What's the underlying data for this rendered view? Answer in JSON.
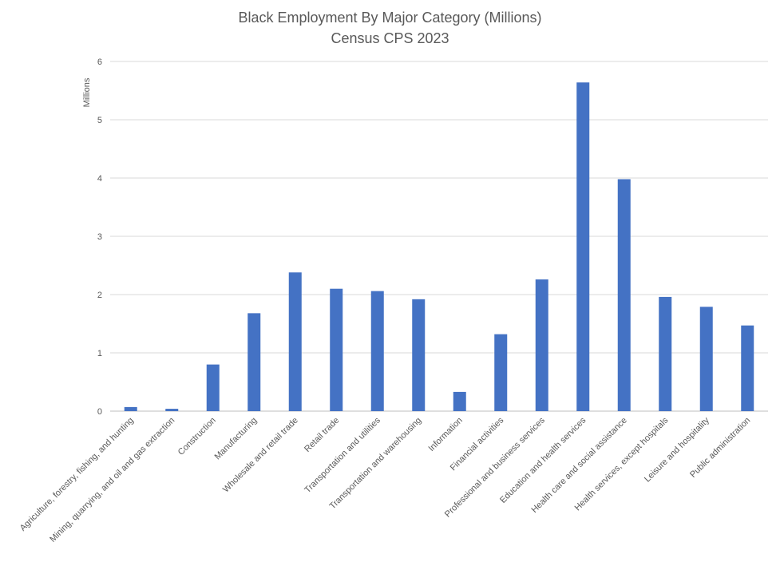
{
  "chart_data": {
    "type": "bar",
    "title": "Black Employment By Major Category (Millions)",
    "subtitle": "Census CPS 2023",
    "xlabel": "",
    "ylabel": "Millions",
    "ylim": [
      0,
      6
    ],
    "yticks": [
      0,
      1,
      2,
      3,
      4,
      5,
      6
    ],
    "grid": true,
    "bar_color": "#4472C4",
    "categories": [
      "Agriculture, forestry, fishing, and hunting",
      "Mining, quarrying, and oil and gas extraction",
      "Construction",
      "Manufacturing",
      "Wholesale and retail trade",
      "Retail trade",
      "Transportation and utilities",
      "Transportation and warehousing",
      "Information",
      "Financial activities",
      "Professional and business services",
      "Education and health services",
      "Health care and social assistance",
      "Health services, except hospitals",
      "Leisure and hospitality",
      "Public administration"
    ],
    "values": [
      0.07,
      0.04,
      0.8,
      1.68,
      2.38,
      2.1,
      2.06,
      1.92,
      0.33,
      1.32,
      2.26,
      5.64,
      3.98,
      1.96,
      1.79,
      1.47
    ]
  }
}
